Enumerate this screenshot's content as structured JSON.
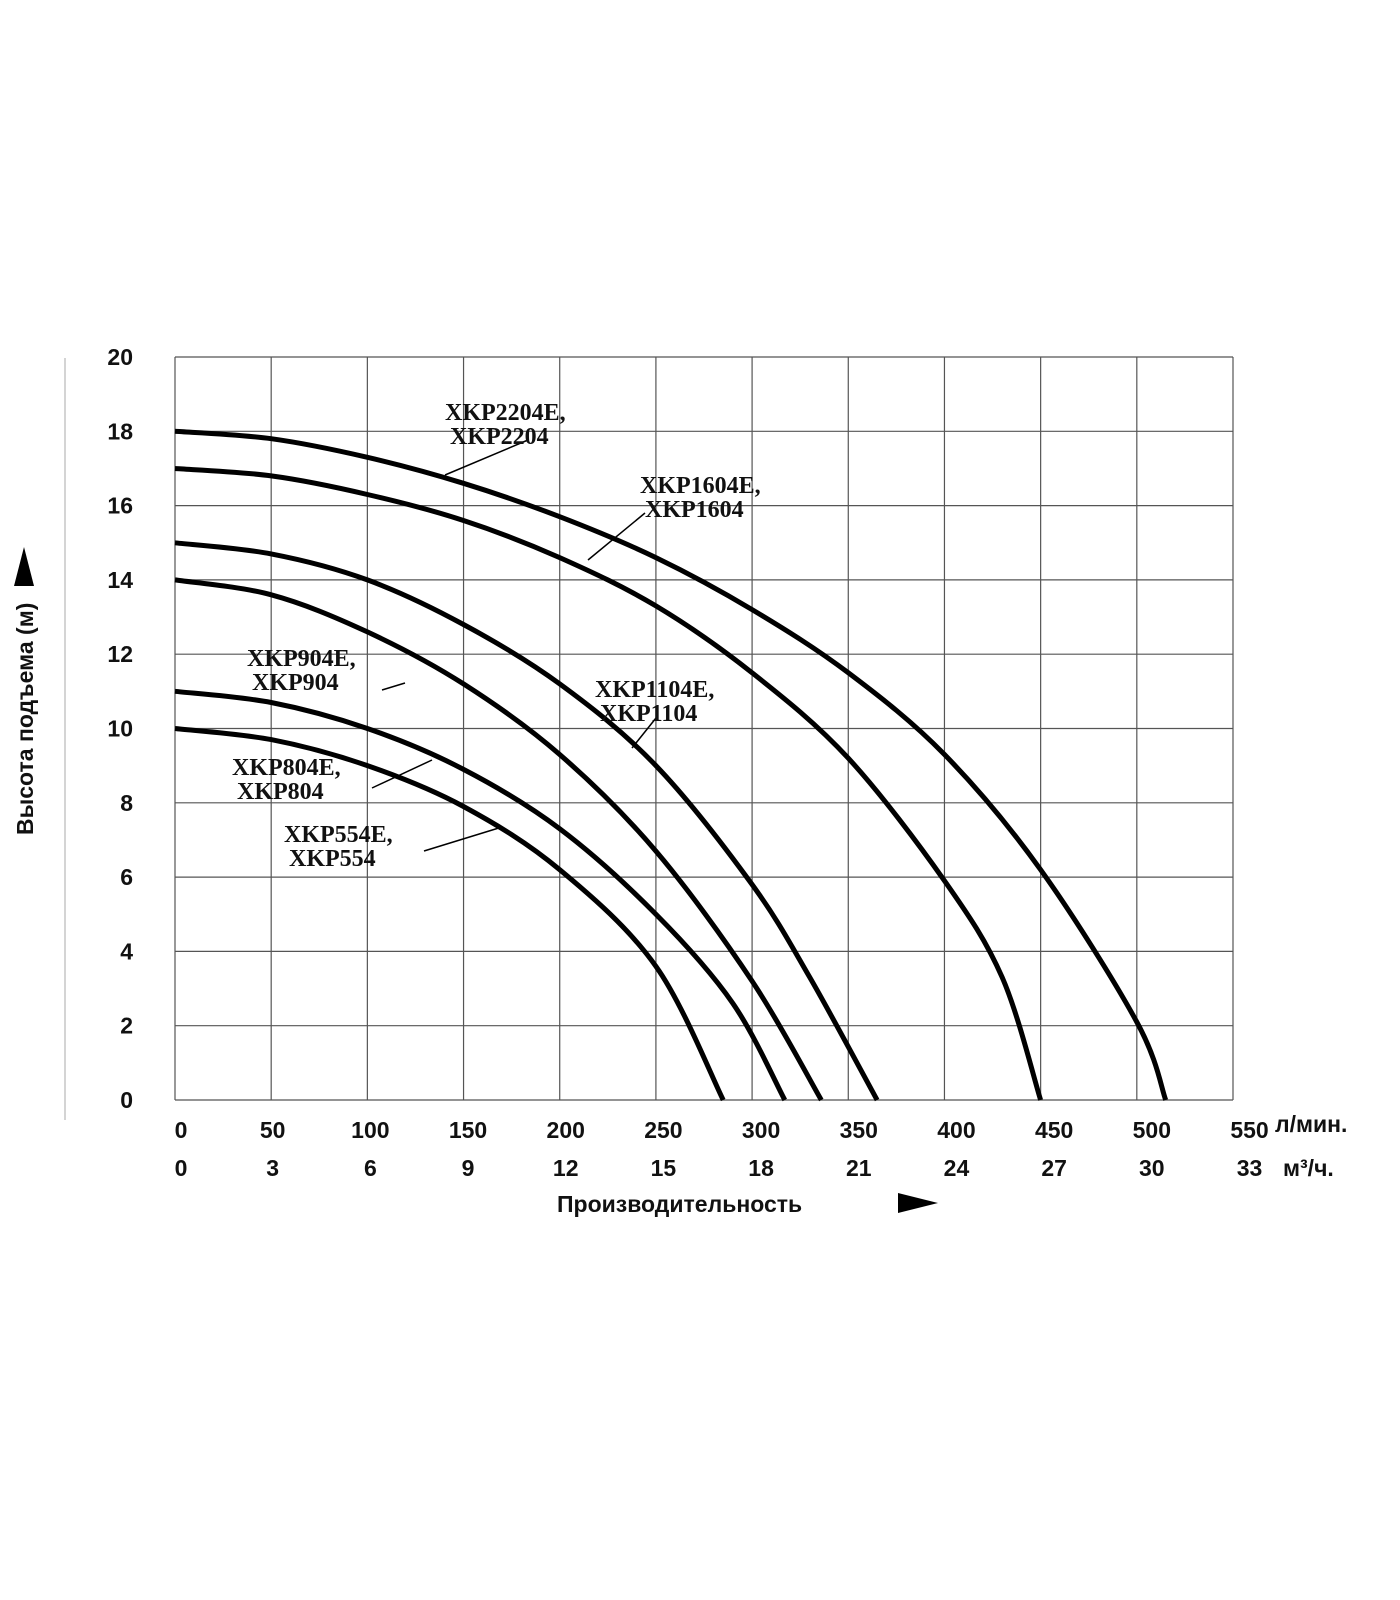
{
  "chart_data": {
    "type": "line",
    "xlabel": "Производительность",
    "ylabel": "Высота подъема (м)",
    "x_unit_primary": "л/мин.",
    "x_unit_secondary": "м³/ч.",
    "xlim": [
      0,
      550
    ],
    "ylim": [
      0,
      20
    ],
    "grid": true,
    "x_ticks_primary": [
      "0",
      "50",
      "100",
      "150",
      "200",
      "250",
      "300",
      "350",
      "400",
      "450",
      "500",
      "550"
    ],
    "x_ticks_secondary": [
      "0",
      "3",
      "6",
      "9",
      "12",
      "15",
      "18",
      "21",
      "24",
      "27",
      "30",
      "33"
    ],
    "y_ticks": [
      "0",
      "2",
      "4",
      "6",
      "8",
      "10",
      "12",
      "14",
      "16",
      "18",
      "20"
    ],
    "series": [
      {
        "name": "XKP2204E, XKP2204",
        "label_lines": [
          "XKP2204E,",
          "XKP2204"
        ],
        "x": [
          0,
          50,
          100,
          150,
          200,
          250,
          300,
          350,
          400,
          450,
          500,
          515
        ],
        "y": [
          18,
          17.8,
          17.3,
          16.6,
          15.7,
          14.6,
          13.2,
          11.5,
          9.3,
          6.2,
          2.1,
          0
        ]
      },
      {
        "name": "XKP1604E, XKP1604",
        "label_lines": [
          "XKP1604E,",
          "XKP1604"
        ],
        "x": [
          0,
          50,
          100,
          150,
          200,
          250,
          300,
          350,
          400,
          430,
          450
        ],
        "y": [
          17,
          16.8,
          16.3,
          15.6,
          14.6,
          13.3,
          11.5,
          9.2,
          5.9,
          3.3,
          0
        ]
      },
      {
        "name": "XKP1104E, XKP1104",
        "label_lines": [
          "XKP1104E,",
          "XKP1104"
        ],
        "x": [
          0,
          50,
          100,
          150,
          200,
          250,
          300,
          330,
          365
        ],
        "y": [
          15,
          14.7,
          14.0,
          12.8,
          11.2,
          9.0,
          5.8,
          3.3,
          0
        ]
      },
      {
        "name": "XKP904E, XKP904",
        "label_lines": [
          "XKP904E,",
          "XKP904"
        ],
        "x": [
          0,
          50,
          100,
          150,
          200,
          250,
          300,
          336
        ],
        "y": [
          14,
          13.6,
          12.6,
          11.2,
          9.3,
          6.7,
          3.2,
          0
        ]
      },
      {
        "name": "XKP804E, XKP804",
        "label_lines": [
          "XKP804E,",
          "XKP804"
        ],
        "x": [
          0,
          50,
          100,
          150,
          200,
          250,
          290,
          317
        ],
        "y": [
          11,
          10.7,
          10.0,
          8.9,
          7.3,
          5.0,
          2.6,
          0
        ]
      },
      {
        "name": "XKP554E, XKP554",
        "label_lines": [
          "XKP554E,",
          "XKP554"
        ],
        "x": [
          0,
          50,
          100,
          150,
          200,
          250,
          285
        ],
        "y": [
          10,
          9.7,
          9.0,
          7.9,
          6.2,
          3.6,
          0
        ]
      }
    ]
  }
}
